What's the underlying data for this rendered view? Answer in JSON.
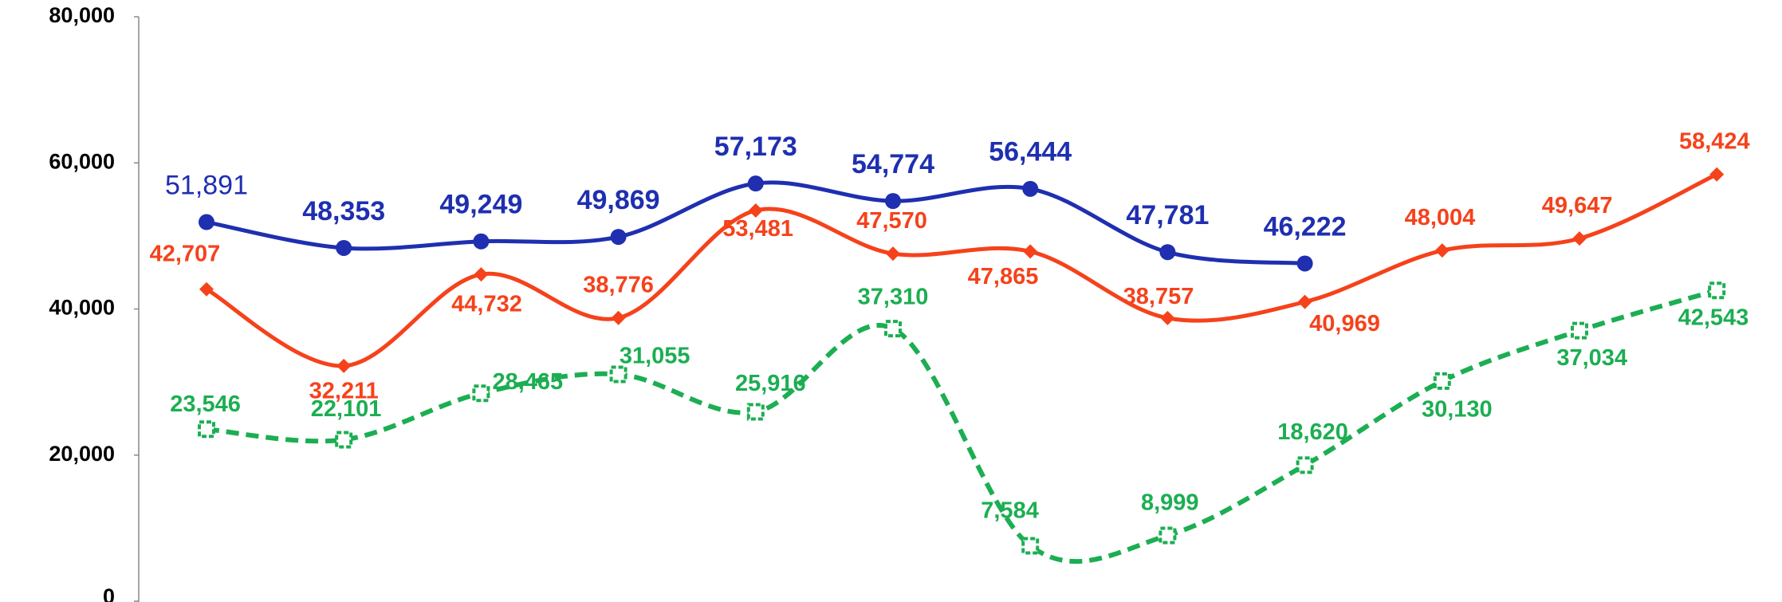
{
  "chart_data": {
    "type": "line",
    "categories": [
      null,
      null,
      null,
      null,
      null,
      null,
      null,
      null,
      null,
      null,
      null,
      null
    ],
    "ylim": [
      0,
      80000
    ],
    "yticks": [
      {
        "value": 0,
        "label": "0"
      },
      {
        "value": 20000,
        "label": "20,000"
      },
      {
        "value": 40000,
        "label": "40,000"
      },
      {
        "value": 60000,
        "label": "60,000"
      },
      {
        "value": 80000,
        "label": "80,000"
      }
    ],
    "series": [
      {
        "color": "#1f2fb0",
        "marker": "circle",
        "dashed": false,
        "values": [
          51891,
          48353,
          49249,
          49869,
          57173,
          54774,
          56444,
          47781,
          46222,
          null,
          null,
          null
        ],
        "value_labels": [
          "51,891",
          "48,353",
          "49,249",
          "49,869",
          "57,173",
          "54,774",
          "56,444",
          "47,781",
          "46,222",
          null,
          null,
          null
        ]
      },
      {
        "color": "#f5421b",
        "marker": "diamond",
        "dashed": false,
        "values": [
          42707,
          32211,
          44732,
          38776,
          53481,
          47570,
          47865,
          38757,
          40969,
          48004,
          49647,
          58424
        ],
        "value_labels": [
          "42,707",
          "32,211",
          "44,732",
          "38,776",
          "53,481",
          "47,570",
          "47,865",
          "38,757",
          "40,969",
          "48,004",
          "49,647",
          "58,424"
        ]
      },
      {
        "color": "#1cae52",
        "marker": "square",
        "dashed": true,
        "values": [
          23546,
          22101,
          28465,
          31055,
          25916,
          37310,
          7584,
          8999,
          18620,
          30130,
          37034,
          42543
        ],
        "value_labels": [
          "23,546",
          "22,101",
          "28,465",
          "31,055",
          "25,916",
          "37,310",
          "7,584",
          "8,999",
          "18,620",
          "30,130",
          "37,034",
          "42,543"
        ]
      }
    ]
  }
}
